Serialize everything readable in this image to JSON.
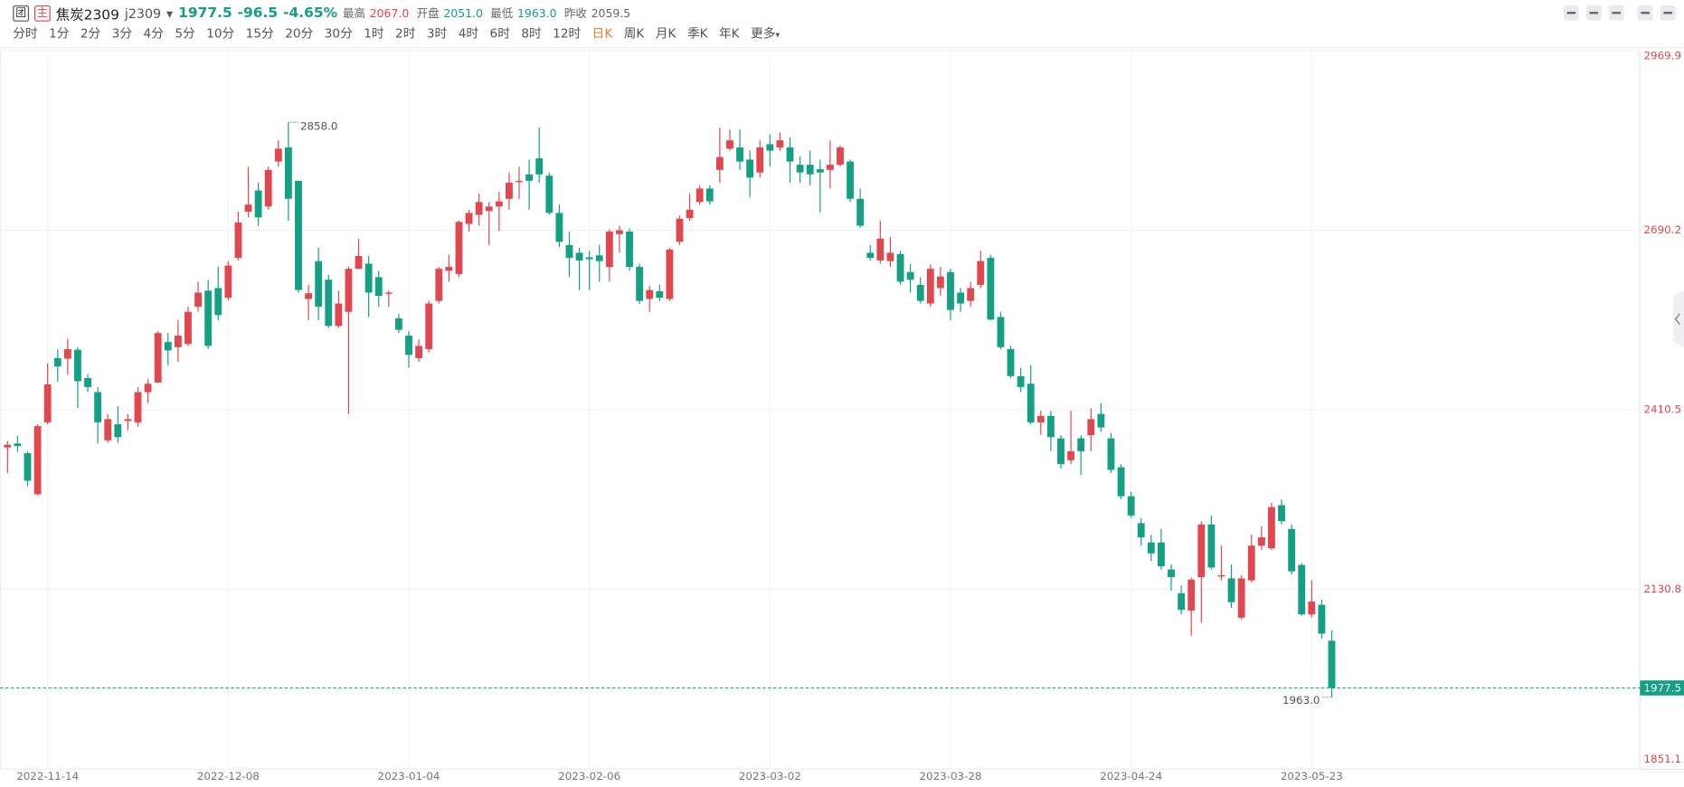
{
  "header": {
    "badge_left": "团",
    "badge_right": "主",
    "name": "焦炭2309",
    "code": "j2309",
    "price": "1977.5",
    "change": "-96.5",
    "change_pct": "-4.65%",
    "price_color": "#13a085",
    "stats": [
      {
        "label": "最高",
        "value": "2067.0",
        "color": "#e0474f"
      },
      {
        "label": "开盘",
        "value": "2051.0",
        "color": "#13a085"
      },
      {
        "label": "最低",
        "value": "1963.0",
        "color": "#13a085"
      },
      {
        "label": "昨收",
        "value": "2059.5",
        "color": "#666666"
      }
    ]
  },
  "periods": [
    {
      "label": "分时",
      "active": false
    },
    {
      "label": "1分",
      "active": false
    },
    {
      "label": "2分",
      "active": false
    },
    {
      "label": "3分",
      "active": false
    },
    {
      "label": "4分",
      "active": false
    },
    {
      "label": "5分",
      "active": false
    },
    {
      "label": "10分",
      "active": false
    },
    {
      "label": "15分",
      "active": false
    },
    {
      "label": "20分",
      "active": false
    },
    {
      "label": "30分",
      "active": false
    },
    {
      "label": "1时",
      "active": false
    },
    {
      "label": "2时",
      "active": false
    },
    {
      "label": "3时",
      "active": false
    },
    {
      "label": "4时",
      "active": false
    },
    {
      "label": "6时",
      "active": false
    },
    {
      "label": "8时",
      "active": false
    },
    {
      "label": "12时",
      "active": false
    },
    {
      "label": "日K",
      "active": true
    },
    {
      "label": "周K",
      "active": false
    },
    {
      "label": "月K",
      "active": false
    },
    {
      "label": "季K",
      "active": false
    },
    {
      "label": "年K",
      "active": false
    },
    {
      "label": "更多",
      "active": false
    }
  ],
  "chart_data": {
    "type": "candlestick",
    "categories": [
      null,
      null,
      null,
      null,
      "2022-11-14",
      null,
      null,
      null,
      null,
      null,
      null,
      null,
      null,
      null,
      null,
      null,
      null,
      null,
      null,
      null,
      null,
      null,
      "2022-12-08",
      null,
      null,
      null,
      null,
      null,
      null,
      null,
      null,
      null,
      null,
      null,
      null,
      null,
      null,
      null,
      null,
      null,
      "2023-01-04",
      null,
      null,
      null,
      null,
      null,
      null,
      null,
      null,
      null,
      null,
      null,
      null,
      null,
      null,
      null,
      null,
      null,
      "2023-02-06",
      null,
      null,
      null,
      null,
      null,
      null,
      null,
      null,
      null,
      null,
      null,
      null,
      null,
      null,
      null,
      null,
      null,
      "2023-03-02",
      null,
      null,
      null,
      null,
      null,
      null,
      null,
      null,
      null,
      null,
      null,
      null,
      null,
      null,
      null,
      null,
      null,
      "2023-03-28",
      null,
      null,
      null,
      null,
      null,
      null,
      null,
      null,
      null,
      null,
      null,
      null,
      null,
      null,
      null,
      null,
      null,
      "2023-04-24",
      null,
      null,
      null,
      null,
      null,
      null,
      null,
      null,
      null,
      null,
      null,
      null,
      null,
      null,
      null,
      null,
      null,
      "2023-05-23",
      null,
      null
    ],
    "open": [
      2352,
      2358,
      2343,
      2279,
      2391,
      2491,
      2490,
      2504,
      2460,
      2438,
      2363,
      2388,
      2393,
      2391,
      2438,
      2453,
      2516,
      2508,
      2513,
      2571,
      2596,
      2600,
      2585,
      2647,
      2719,
      2752,
      2727,
      2797,
      2819,
      2767,
      2583,
      2642,
      2613,
      2541,
      2563,
      2630,
      2638,
      2617,
      2591,
      2553,
      2526,
      2491,
      2505,
      2580,
      2627,
      2622,
      2700,
      2714,
      2720,
      2727,
      2739,
      2765,
      2777,
      2802,
      2775,
      2717,
      2667,
      2655,
      2648,
      2651,
      2633,
      2684,
      2688,
      2633,
      2583,
      2595,
      2583,
      2672,
      2709,
      2734,
      2755,
      2784,
      2817,
      2819,
      2800,
      2780,
      2824,
      2819,
      2819,
      2792,
      2792,
      2785,
      2784,
      2792,
      2797,
      2739,
      2655,
      2643,
      2642,
      2653,
      2625,
      2605,
      2576,
      2600,
      2625,
      2593,
      2580,
      2605,
      2647,
      2555,
      2505,
      2463,
      2451,
      2391,
      2401,
      2366,
      2332,
      2366,
      2371,
      2404,
      2366,
      2321,
      2276,
      2234,
      2204,
      2204,
      2162,
      2125,
      2098,
      2150,
      2232,
      2151,
      2148,
      2087,
      2145,
      2199,
      2195,
      2262,
      2225,
      2169,
      2092,
      2107,
      2051
    ],
    "high": [
      2362,
      2370,
      2346,
      2388,
      2483,
      2505,
      2521,
      2508,
      2466,
      2446,
      2404,
      2416,
      2404,
      2446,
      2458,
      2533,
      2530,
      2550,
      2571,
      2610,
      2613,
      2633,
      2642,
      2719,
      2789,
      2764,
      2789,
      2830,
      2858,
      2767,
      2605,
      2663,
      2621,
      2596,
      2633,
      2677,
      2650,
      2627,
      2596,
      2560,
      2533,
      2520,
      2580,
      2633,
      2652,
      2705,
      2722,
      2747,
      2734,
      2750,
      2780,
      2789,
      2800,
      2850,
      2780,
      2730,
      2688,
      2663,
      2658,
      2667,
      2692,
      2697,
      2693,
      2638,
      2603,
      2605,
      2663,
      2713,
      2747,
      2760,
      2760,
      2850,
      2847,
      2847,
      2814,
      2830,
      2839,
      2842,
      2835,
      2805,
      2814,
      2800,
      2830,
      2822,
      2800,
      2755,
      2667,
      2705,
      2680,
      2658,
      2638,
      2617,
      2637,
      2633,
      2630,
      2600,
      2610,
      2658,
      2652,
      2563,
      2510,
      2476,
      2480,
      2409,
      2409,
      2371,
      2409,
      2371,
      2413,
      2421,
      2374,
      2326,
      2283,
      2242,
      2216,
      2225,
      2170,
      2137,
      2149,
      2237,
      2246,
      2199,
      2170,
      2153,
      2216,
      2229,
      2266,
      2271,
      2232,
      2172,
      2145,
      2115,
      2067
    ],
    "low": [
      2312,
      2345,
      2292,
      2278,
      2388,
      2454,
      2465,
      2413,
      2438,
      2358,
      2359,
      2359,
      2379,
      2384,
      2421,
      2453,
      2480,
      2485,
      2510,
      2563,
      2505,
      2550,
      2581,
      2643,
      2710,
      2697,
      2722,
      2789,
      2705,
      2593,
      2550,
      2550,
      2538,
      2538,
      2404,
      2630,
      2555,
      2571,
      2571,
      2530,
      2476,
      2485,
      2500,
      2576,
      2610,
      2617,
      2688,
      2697,
      2667,
      2689,
      2722,
      2739,
      2722,
      2764,
      2714,
      2664,
      2617,
      2597,
      2597,
      2610,
      2610,
      2655,
      2627,
      2575,
      2563,
      2580,
      2580,
      2667,
      2705,
      2730,
      2730,
      2764,
      2814,
      2784,
      2742,
      2772,
      2789,
      2814,
      2764,
      2764,
      2760,
      2718,
      2755,
      2789,
      2734,
      2694,
      2643,
      2638,
      2633,
      2605,
      2593,
      2576,
      2571,
      2588,
      2550,
      2563,
      2571,
      2600,
      2550,
      2505,
      2460,
      2438,
      2388,
      2371,
      2346,
      2319,
      2326,
      2309,
      2346,
      2376,
      2312,
      2271,
      2242,
      2199,
      2175,
      2162,
      2129,
      2092,
      2059,
      2079,
      2162,
      2145,
      2102,
      2084,
      2142,
      2192,
      2192,
      2232,
      2154,
      2090,
      2087,
      2054,
      1963
    ],
    "close": [
      2356,
      2354,
      2300,
      2385,
      2450,
      2478,
      2505,
      2455,
      2446,
      2391,
      2396,
      2368,
      2396,
      2438,
      2451,
      2530,
      2503,
      2526,
      2563,
      2593,
      2510,
      2558,
      2635,
      2702,
      2730,
      2710,
      2784,
      2817,
      2739,
      2597,
      2592,
      2571,
      2541,
      2576,
      2630,
      2650,
      2593,
      2588,
      2593,
      2535,
      2496,
      2510,
      2576,
      2630,
      2633,
      2703,
      2717,
      2734,
      2727,
      2735,
      2764,
      2767,
      2767,
      2777,
      2717,
      2672,
      2647,
      2643,
      2645,
      2642,
      2688,
      2690,
      2633,
      2580,
      2597,
      2585,
      2660,
      2708,
      2722,
      2755,
      2735,
      2804,
      2830,
      2797,
      2772,
      2819,
      2814,
      2830,
      2797,
      2780,
      2777,
      2780,
      2792,
      2819,
      2739,
      2697,
      2647,
      2677,
      2655,
      2610,
      2613,
      2580,
      2630,
      2618,
      2566,
      2576,
      2600,
      2642,
      2551,
      2508,
      2463,
      2446,
      2391,
      2401,
      2368,
      2326,
      2346,
      2346,
      2396,
      2383,
      2317,
      2276,
      2246,
      2212,
      2187,
      2167,
      2150,
      2099,
      2146,
      2232,
      2165,
      2153,
      2111,
      2148,
      2199,
      2212,
      2259,
      2237,
      2159,
      2092,
      2112,
      2062,
      1977.5
    ],
    "up_color": "#e0474f",
    "down_color": "#13a085",
    "ylim": [
      1851.1,
      2969.9
    ],
    "yticks": [
      2969.9,
      2690.2,
      2410.5,
      2130.8,
      1851.1
    ],
    "grid": true,
    "high_label": "2858.0",
    "low_label": "1963.0",
    "last_label": "1977.5"
  }
}
